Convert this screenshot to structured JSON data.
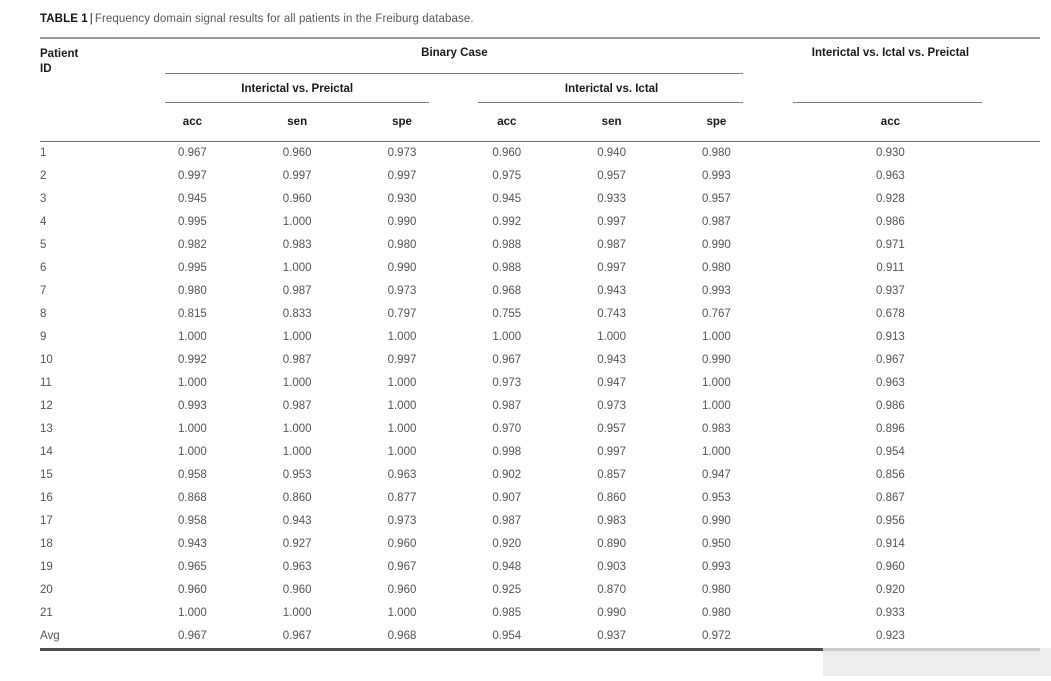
{
  "caption": {
    "label": "TABLE 1",
    "separator": "|",
    "text": "Frequency domain signal results for all patients in the Freiburg database."
  },
  "table": {
    "patient_header": {
      "line1": "Patient",
      "line2": "ID"
    },
    "group_headers": {
      "binary": "Binary Case",
      "multiclass": "Interictal vs. Ictal vs. Preictal"
    },
    "subgroup_headers": {
      "interictal_vs_preictal": "Interictal vs. Preictal",
      "interictal_vs_ictal": "Interictal vs. Ictal"
    },
    "metric_headers": [
      "acc",
      "sen",
      "spe",
      "acc",
      "sen",
      "spe",
      "acc"
    ],
    "rows": [
      {
        "id": "1",
        "values": [
          "0.967",
          "0.960",
          "0.973",
          "0.960",
          "0.940",
          "0.980",
          "0.930"
        ]
      },
      {
        "id": "2",
        "values": [
          "0.997",
          "0.997",
          "0.997",
          "0.975",
          "0.957",
          "0.993",
          "0.963"
        ]
      },
      {
        "id": "3",
        "values": [
          "0.945",
          "0.960",
          "0.930",
          "0.945",
          "0.933",
          "0.957",
          "0.928"
        ]
      },
      {
        "id": "4",
        "values": [
          "0.995",
          "1.000",
          "0.990",
          "0.992",
          "0.997",
          "0.987",
          "0.986"
        ]
      },
      {
        "id": "5",
        "values": [
          "0.982",
          "0.983",
          "0.980",
          "0.988",
          "0.987",
          "0.990",
          "0.971"
        ]
      },
      {
        "id": "6",
        "values": [
          "0.995",
          "1.000",
          "0.990",
          "0.988",
          "0.997",
          "0.980",
          "0.911"
        ]
      },
      {
        "id": "7",
        "values": [
          "0.980",
          "0.987",
          "0.973",
          "0.968",
          "0.943",
          "0.993",
          "0.937"
        ]
      },
      {
        "id": "8",
        "values": [
          "0.815",
          "0.833",
          "0.797",
          "0.755",
          "0.743",
          "0.767",
          "0.678"
        ]
      },
      {
        "id": "9",
        "values": [
          "1.000",
          "1.000",
          "1.000",
          "1.000",
          "1.000",
          "1.000",
          "0.913"
        ]
      },
      {
        "id": "10",
        "values": [
          "0.992",
          "0.987",
          "0.997",
          "0.967",
          "0.943",
          "0.990",
          "0.967"
        ]
      },
      {
        "id": "11",
        "values": [
          "1.000",
          "1.000",
          "1.000",
          "0.973",
          "0.947",
          "1.000",
          "0.963"
        ]
      },
      {
        "id": "12",
        "values": [
          "0.993",
          "0.987",
          "1.000",
          "0.987",
          "0.973",
          "1.000",
          "0.986"
        ]
      },
      {
        "id": "13",
        "values": [
          "1.000",
          "1.000",
          "1.000",
          "0.970",
          "0.957",
          "0.983",
          "0.896"
        ]
      },
      {
        "id": "14",
        "values": [
          "1.000",
          "1.000",
          "1.000",
          "0.998",
          "0.997",
          "1.000",
          "0.954"
        ]
      },
      {
        "id": "15",
        "values": [
          "0.958",
          "0.953",
          "0.963",
          "0.902",
          "0.857",
          "0.947",
          "0.856"
        ]
      },
      {
        "id": "16",
        "values": [
          "0.868",
          "0.860",
          "0.877",
          "0.907",
          "0.860",
          "0.953",
          "0.867"
        ]
      },
      {
        "id": "17",
        "values": [
          "0.958",
          "0.943",
          "0.973",
          "0.987",
          "0.983",
          "0.990",
          "0.956"
        ]
      },
      {
        "id": "18",
        "values": [
          "0.943",
          "0.927",
          "0.960",
          "0.920",
          "0.890",
          "0.950",
          "0.914"
        ]
      },
      {
        "id": "19",
        "values": [
          "0.965",
          "0.963",
          "0.967",
          "0.948",
          "0.903",
          "0.993",
          "0.960"
        ]
      },
      {
        "id": "20",
        "values": [
          "0.960",
          "0.960",
          "0.960",
          "0.925",
          "0.870",
          "0.980",
          "0.920"
        ]
      },
      {
        "id": "21",
        "values": [
          "1.000",
          "1.000",
          "1.000",
          "0.985",
          "0.990",
          "0.980",
          "0.933"
        ]
      },
      {
        "id": "Avg",
        "values": [
          "0.967",
          "0.967",
          "0.968",
          "0.954",
          "0.937",
          "0.972",
          "0.923"
        ]
      }
    ]
  }
}
